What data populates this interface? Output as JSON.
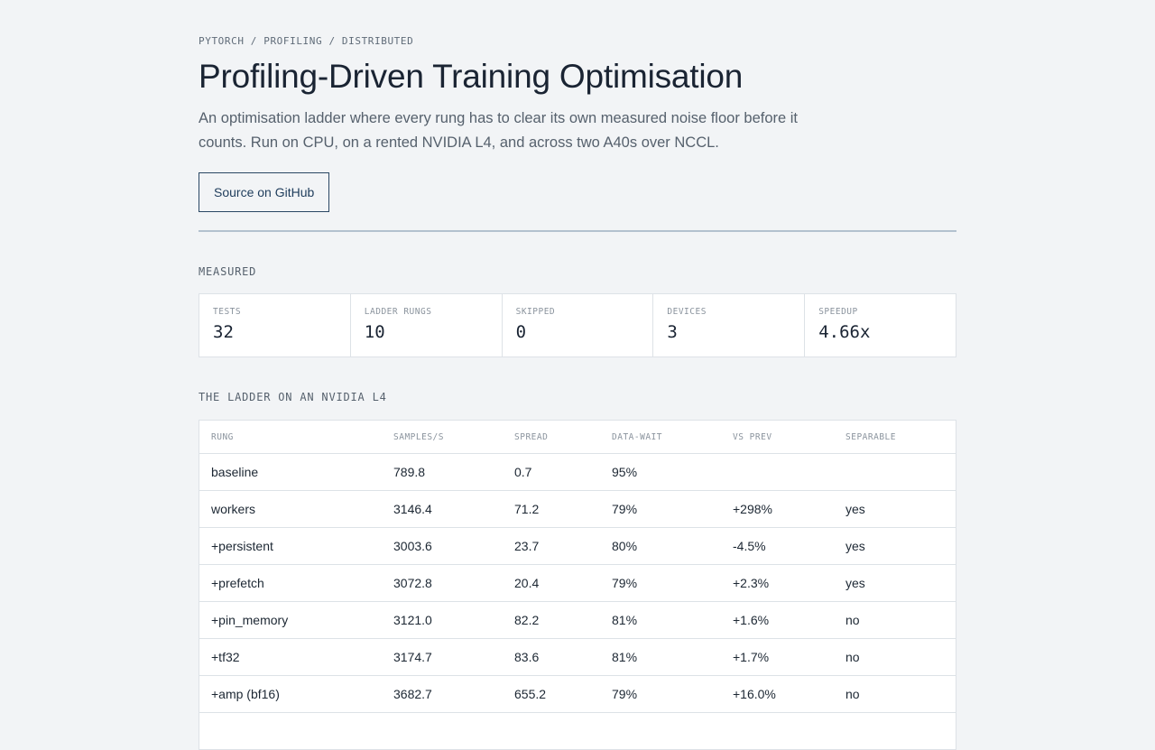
{
  "breadcrumb": "PYTORCH / PROFILING / DISTRIBUTED",
  "title": "Profiling-Driven Training Optimisation",
  "intro": "An optimisation ladder where every rung has to clear its own measured noise floor before it counts. Run on CPU, on a rented NVIDIA L4, and across two A40s over NCCL.",
  "github_button": "Source on GitHub",
  "measured": {
    "heading": "MEASURED",
    "stats": [
      {
        "label": "TESTS",
        "value": "32"
      },
      {
        "label": "LADDER RUNGS",
        "value": "10"
      },
      {
        "label": "SKIPPED",
        "value": "0"
      },
      {
        "label": "DEVICES",
        "value": "3"
      },
      {
        "label": "SPEEDUP",
        "value": "4.66x"
      }
    ]
  },
  "ladder": {
    "heading": "THE LADDER ON AN NVIDIA L4",
    "columns": [
      "RUNG",
      "SAMPLES/S",
      "SPREAD",
      "DATA-WAIT",
      "VS PREV",
      "SEPARABLE"
    ],
    "rows": [
      {
        "rung": "baseline",
        "samples": "789.8",
        "spread": "0.7",
        "wait": "95%",
        "vs_prev": "",
        "separable": ""
      },
      {
        "rung": "workers",
        "samples": "3146.4",
        "spread": "71.2",
        "wait": "79%",
        "vs_prev": "+298%",
        "separable": "yes"
      },
      {
        "rung": "+persistent",
        "samples": "3003.6",
        "spread": "23.7",
        "wait": "80%",
        "vs_prev": "-4.5%",
        "separable": "yes"
      },
      {
        "rung": "+prefetch",
        "samples": "3072.8",
        "spread": "20.4",
        "wait": "79%",
        "vs_prev": "+2.3%",
        "separable": "yes"
      },
      {
        "rung": "+pin_memory",
        "samples": "3121.0",
        "spread": "82.2",
        "wait": "81%",
        "vs_prev": "+1.6%",
        "separable": "no"
      },
      {
        "rung": "+tf32",
        "samples": "3174.7",
        "spread": "83.6",
        "wait": "81%",
        "vs_prev": "+1.7%",
        "separable": "no"
      },
      {
        "rung": "+amp (bf16)",
        "samples": "3682.7",
        "spread": "655.2",
        "wait": "79%",
        "vs_prev": "+16.0%",
        "separable": "no"
      }
    ]
  }
}
